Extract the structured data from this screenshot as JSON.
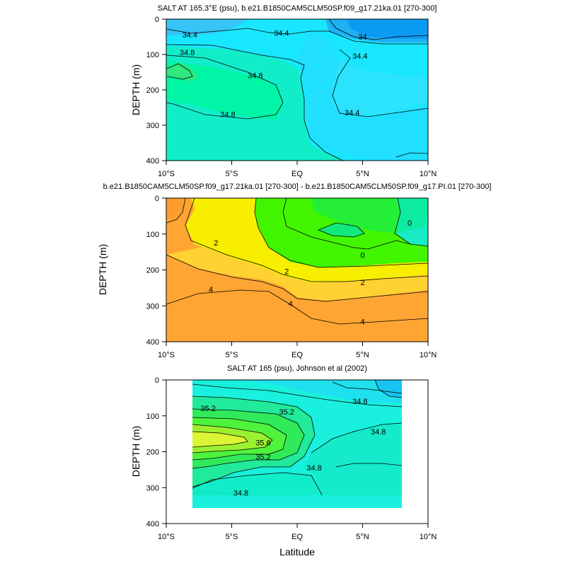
{
  "chart_data": [
    {
      "type": "contour",
      "title": "SALT AT 165.3°E (psu), b.e21.B1850CAM5CLM50SP.f09_g17.21ka.01 [270-300]",
      "ylabel": "DEPTH (m)",
      "xlabel": "",
      "xlim": [
        -10,
        10
      ],
      "ylim": [
        0,
        400
      ],
      "y_inverted": true,
      "x_ticks": [
        -10,
        -5,
        0,
        5,
        10
      ],
      "x_tick_labels": [
        "10°S",
        "5°S",
        "EQ",
        "5°N",
        "10°N"
      ],
      "y_ticks": [
        0,
        100,
        200,
        300,
        400
      ],
      "y_tick_labels": [
        "0",
        "100",
        "200",
        "300",
        "400"
      ],
      "contour_labels": [
        {
          "text": "34.4",
          "lat": -8.2,
          "depth": 45
        },
        {
          "text": "34.4",
          "lat": -1.2,
          "depth": 40
        },
        {
          "text": "34",
          "lat": 5.0,
          "depth": 50
        },
        {
          "text": "34.4",
          "lat": 4.8,
          "depth": 105
        },
        {
          "text": "34.8",
          "lat": -8.4,
          "depth": 95
        },
        {
          "text": "34.8",
          "lat": -3.2,
          "depth": 160
        },
        {
          "text": "34.8",
          "lat": -5.3,
          "depth": 270
        },
        {
          "text": "34.4",
          "lat": 4.2,
          "depth": 265
        }
      ]
    },
    {
      "type": "contour",
      "title": "b.e21.B1850CAM5CLM50SP.f09_g17.21ka.01 [270-300] - b.e21.B1850CAM5CLM50SP.f09_g17.PI.01 [270-300]",
      "ylabel": "DEPTH (m)",
      "xlabel": "",
      "xlim": [
        -10,
        10
      ],
      "ylim": [
        0,
        400
      ],
      "y_inverted": true,
      "x_ticks": [
        -10,
        -5,
        0,
        5,
        10
      ],
      "x_tick_labels": [
        "10°S",
        "5°S",
        "EQ",
        "5°N",
        "10°N"
      ],
      "y_ticks": [
        0,
        100,
        200,
        300,
        400
      ],
      "y_tick_labels": [
        "0",
        "100",
        "200",
        "300",
        "400"
      ],
      "contour_labels": [
        {
          "text": "0",
          "lat": 8.6,
          "depth": 70
        },
        {
          "text": "2",
          "lat": -6.2,
          "depth": 125
        },
        {
          "text": "0",
          "lat": 5.0,
          "depth": 160
        },
        {
          "text": "2",
          "lat": -0.8,
          "depth": 205
        },
        {
          "text": "2",
          "lat": 5.0,
          "depth": 235
        },
        {
          "text": "4",
          "lat": -6.6,
          "depth": 255
        },
        {
          "text": "4",
          "lat": -0.5,
          "depth": 295
        },
        {
          "text": "4",
          "lat": 5.0,
          "depth": 345
        }
      ]
    },
    {
      "type": "contour",
      "title": "SALT AT 165 (psu), Johnson et al (2002)",
      "ylabel": "DEPTH (m)",
      "xlabel": "Latitude",
      "xlim": [
        -10,
        10
      ],
      "ylim": [
        0,
        400
      ],
      "y_inverted": true,
      "x_ticks": [
        -10,
        -5,
        0,
        5,
        10
      ],
      "x_tick_labels": [
        "10°S",
        "5°S",
        "EQ",
        "5°N",
        "10°N"
      ],
      "y_ticks": [
        0,
        100,
        200,
        300,
        400
      ],
      "y_tick_labels": [
        "0",
        "100",
        "200",
        "300",
        "400"
      ],
      "data_extent_lat": [
        -8,
        8
      ],
      "data_extent_depth": [
        0,
        360
      ],
      "contour_labels": [
        {
          "text": "35.2",
          "lat": -6.8,
          "depth": 80
        },
        {
          "text": "35.2",
          "lat": -0.8,
          "depth": 90
        },
        {
          "text": "34.8",
          "lat": 4.8,
          "depth": 60
        },
        {
          "text": "35.6",
          "lat": -2.6,
          "depth": 175
        },
        {
          "text": "34.8",
          "lat": 6.2,
          "depth": 145
        },
        {
          "text": "35.2",
          "lat": -2.6,
          "depth": 215
        },
        {
          "text": "34.8",
          "lat": 1.3,
          "depth": 245
        },
        {
          "text": "34.8",
          "lat": -4.3,
          "depth": 315
        }
      ]
    }
  ]
}
